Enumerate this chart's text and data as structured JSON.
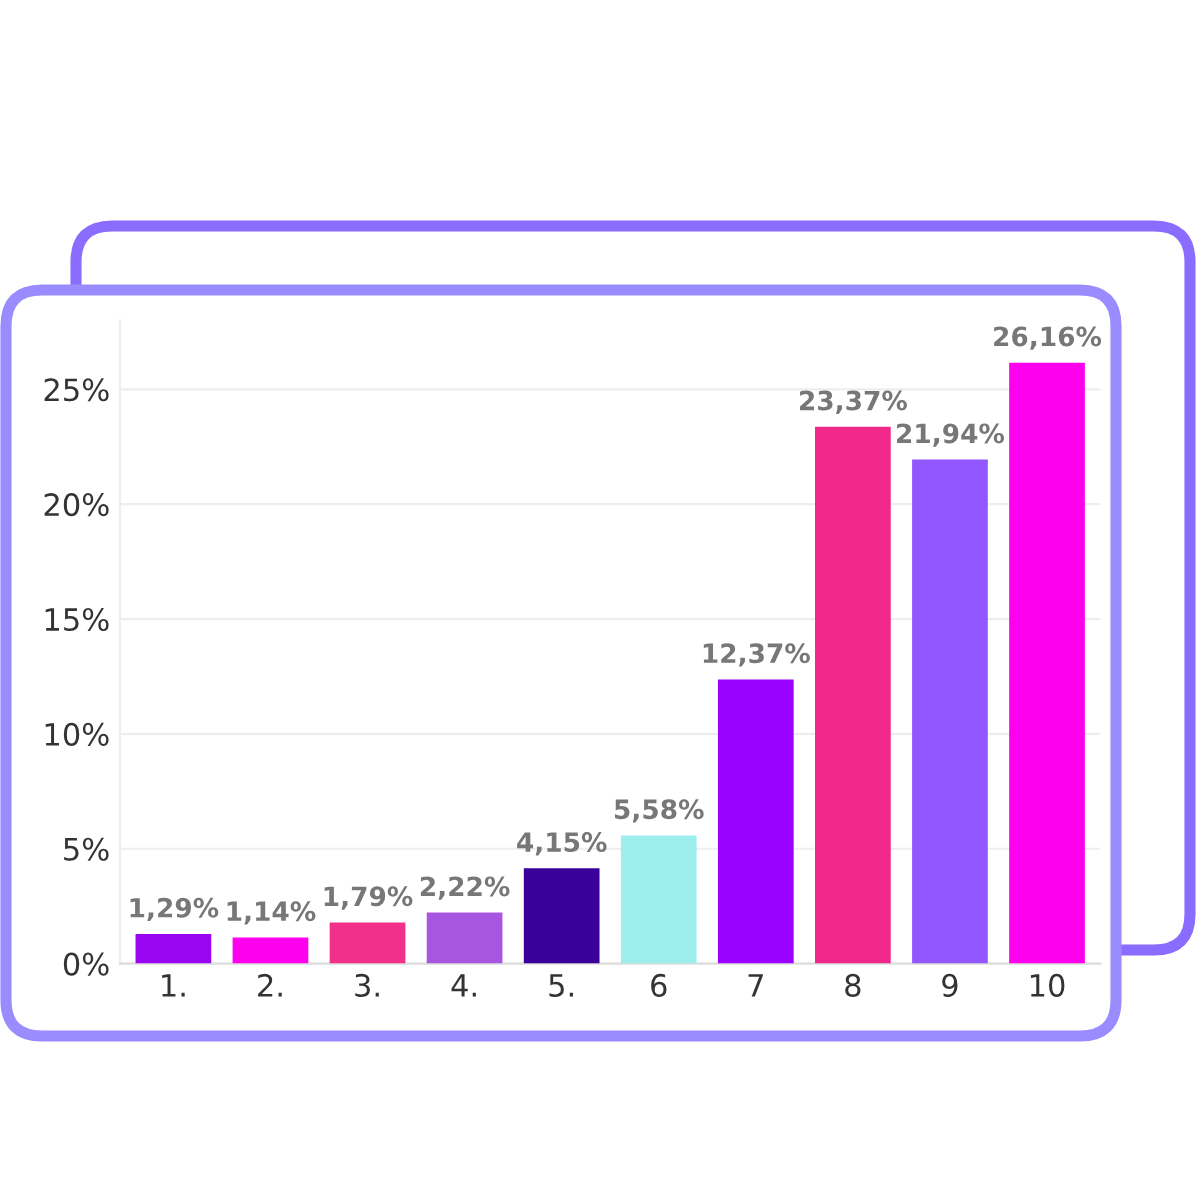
{
  "chart_data": {
    "type": "bar",
    "categories": [
      "1.",
      "2.",
      "3.",
      "4.",
      "5.",
      "6",
      "7",
      "8",
      "9",
      "10"
    ],
    "values": [
      1.29,
      1.14,
      1.79,
      2.22,
      4.15,
      5.58,
      12.37,
      23.37,
      21.94,
      26.16
    ],
    "colors": [
      "#9a05f2",
      "#ff00ee",
      "#f0308a",
      "#a855e0",
      "#3a0099",
      "#9eeeee",
      "#9900ff",
      "#f0288a",
      "#9257ff",
      "#ff00ee"
    ],
    "value_labels": [
      "1,29%",
      "1,14%",
      "1,79%",
      "2,22%",
      "4,15%",
      "5,58%",
      "12,37%",
      "23,37%",
      "21,94%",
      "26,16%"
    ],
    "ylim": [
      0,
      28
    ],
    "yticks": [
      {
        "value": 0,
        "label": "0%"
      },
      {
        "value": 5,
        "label": "5%"
      },
      {
        "value": 10,
        "label": "10%"
      },
      {
        "value": 15,
        "label": "15%"
      },
      {
        "value": 20,
        "label": "20%"
      },
      {
        "value": 25,
        "label": "25%"
      }
    ],
    "grid": "y"
  }
}
